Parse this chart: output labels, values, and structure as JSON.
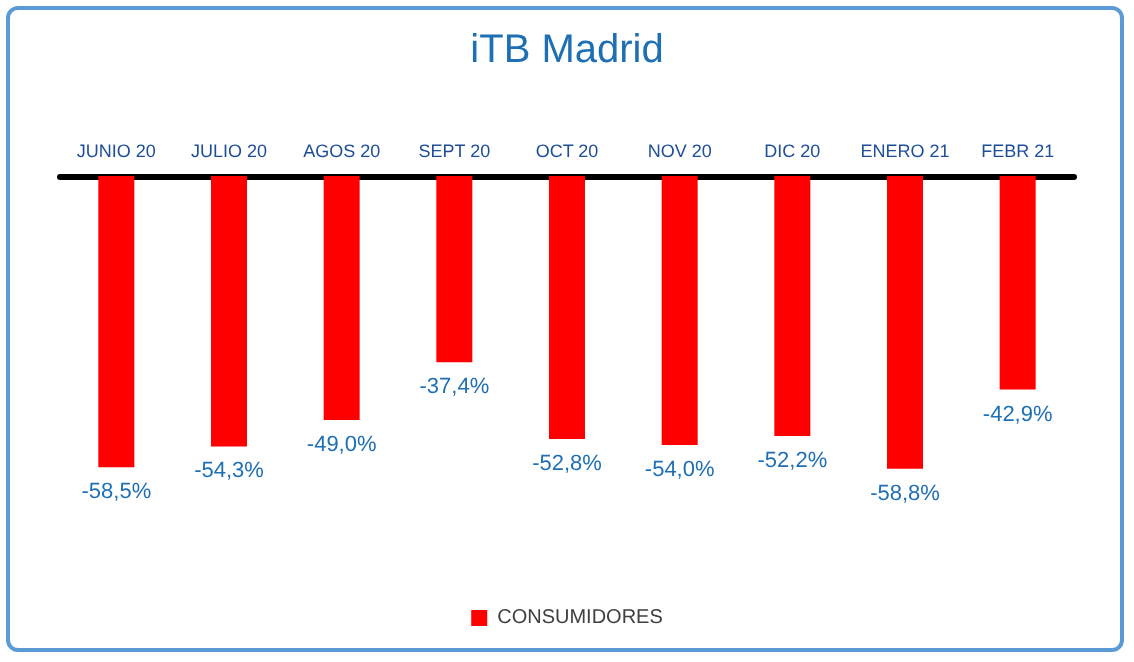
{
  "chart_data": {
    "type": "bar",
    "title": "iTB Madrid",
    "categories": [
      "JUNIO 20",
      "JULIO 20",
      "AGOS 20",
      "SEPT 20",
      "OCT 20",
      "NOV 20",
      "DIC 20",
      "ENERO 21",
      "FEBR 21"
    ],
    "series": [
      {
        "name": "CONSUMIDORES",
        "color": "#ff0000",
        "values": [
          -58.5,
          -54.3,
          -49.0,
          -37.4,
          -52.8,
          -54.0,
          -52.2,
          -58.8,
          -42.9
        ],
        "value_labels": [
          "-58,5%",
          "-54,3%",
          "-49,0%",
          "-37,4%",
          "-52,8%",
          "-54,0%",
          "-52,2%",
          "-58,8%",
          "-42,9%"
        ]
      }
    ],
    "legend": "bottom"
  }
}
